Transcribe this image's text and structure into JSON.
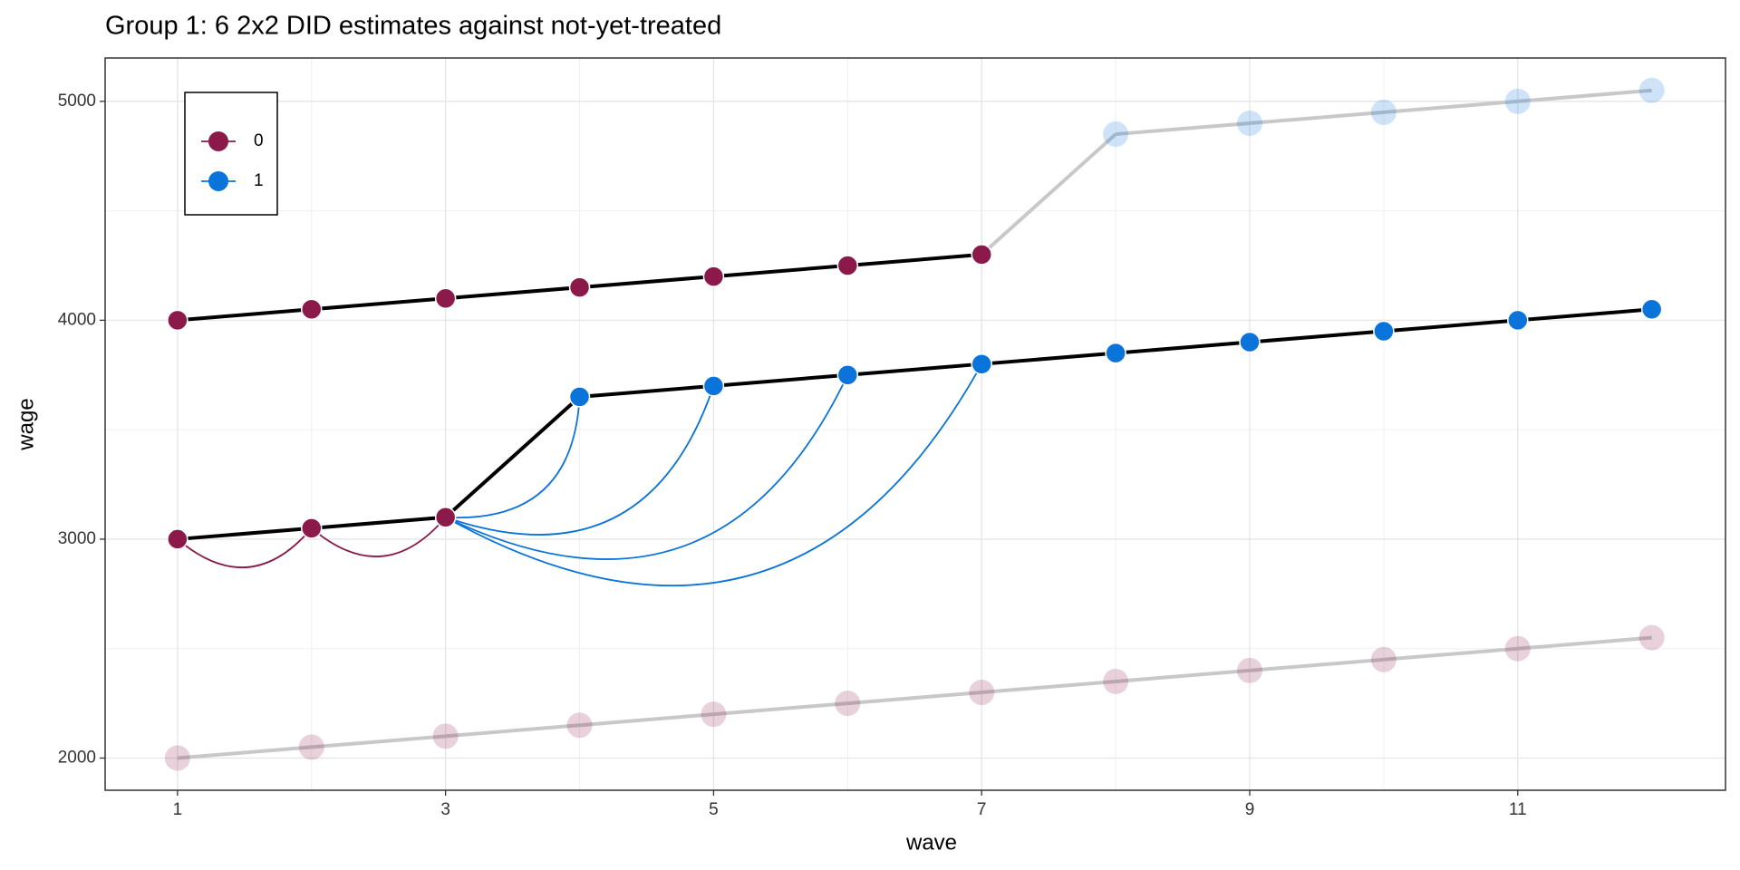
{
  "chart_data": {
    "type": "line",
    "title": "Group 1: 6 2x2 DID estimates against not-yet-treated",
    "x_label": "wave",
    "y_label": "wage",
    "x": [
      1,
      2,
      3,
      4,
      5,
      6,
      7,
      8,
      9,
      10,
      11,
      12
    ],
    "series": [
      {
        "name": "0",
        "color": "#8b1a4b"
      },
      {
        "name": "1",
        "color": "#0a74da"
      }
    ],
    "units": [
      {
        "values": [
          4000,
          4050,
          4100,
          4150,
          4200,
          4250,
          4300,
          4850,
          4900,
          4950,
          5000,
          5050
        ],
        "treated": [
          0,
          0,
          0,
          0,
          0,
          0,
          0,
          1,
          1,
          1,
          1,
          1
        ],
        "active": [
          true,
          true,
          true,
          true,
          true,
          true,
          true,
          false,
          false,
          false,
          false,
          false
        ]
      },
      {
        "values": [
          3000,
          3050,
          3100,
          3650,
          3700,
          3750,
          3800,
          3850,
          3900,
          3950,
          4000,
          4050
        ],
        "treated": [
          0,
          0,
          0,
          1,
          1,
          1,
          1,
          1,
          1,
          1,
          1,
          1
        ],
        "active": [
          true,
          true,
          true,
          true,
          true,
          true,
          true,
          true,
          true,
          true,
          true,
          true
        ]
      },
      {
        "values": [
          2000,
          2050,
          2100,
          2150,
          2200,
          2250,
          2300,
          2350,
          2400,
          2450,
          2500,
          2550
        ],
        "treated": [
          0,
          0,
          0,
          0,
          0,
          0,
          0,
          0,
          0,
          0,
          0,
          0
        ],
        "active": [
          false,
          false,
          false,
          false,
          false,
          false,
          false,
          false,
          false,
          false,
          false,
          false
        ]
      }
    ],
    "comparisons": [
      {
        "unit": 1,
        "from": 0,
        "to": 1,
        "series": 0
      },
      {
        "unit": 1,
        "from": 1,
        "to": 2,
        "series": 0
      },
      {
        "unit": 1,
        "from": 2,
        "to": 3,
        "series": 1
      },
      {
        "unit": 1,
        "from": 2,
        "to": 4,
        "series": 1
      },
      {
        "unit": 1,
        "from": 2,
        "to": 5,
        "series": 1
      },
      {
        "unit": 1,
        "from": 2,
        "to": 6,
        "series": 1
      }
    ],
    "xlim": [
      0.46,
      12.55
    ],
    "ylim": [
      1853,
      5198
    ],
    "xticks": [
      1,
      3,
      5,
      7,
      9,
      11
    ],
    "yticks": [
      2000,
      3000,
      4000,
      5000
    ],
    "grid": true,
    "legend": "top-left"
  }
}
